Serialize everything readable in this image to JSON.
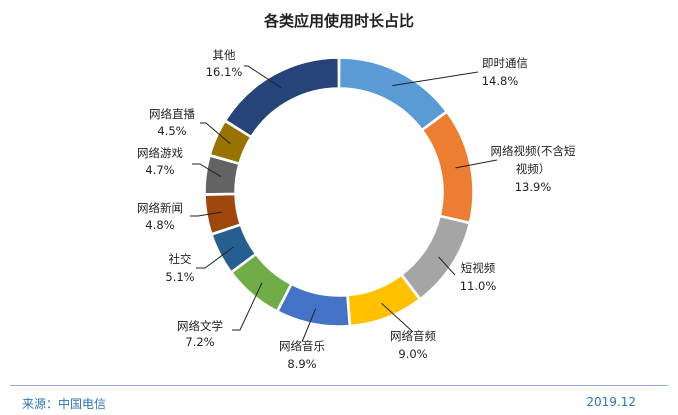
{
  "chart_data": {
    "type": "pie",
    "variant": "donut",
    "title": "各类应用使用时长占比",
    "slices": [
      {
        "label": "即时通信",
        "value": 14.8,
        "value_label": "14.8%",
        "color": "#5b9bd5"
      },
      {
        "label": "网络视频(不含短视频）",
        "value": 13.9,
        "value_label": "13.9%",
        "color": "#ed7d31"
      },
      {
        "label": "短视频",
        "value": 11.0,
        "value_label": "11.0%",
        "color": "#a5a5a5"
      },
      {
        "label": "网络音频",
        "value": 9.0,
        "value_label": "9.0%",
        "color": "#ffc000"
      },
      {
        "label": "网络音乐",
        "value": 8.9,
        "value_label": "8.9%",
        "color": "#4472c4"
      },
      {
        "label": "网络文学",
        "value": 7.2,
        "value_label": "7.2%",
        "color": "#70ad47"
      },
      {
        "label": "社交",
        "value": 5.1,
        "value_label": "5.1%",
        "color": "#255e91"
      },
      {
        "label": "网络新闻",
        "value": 4.8,
        "value_label": "4.8%",
        "color": "#9e480e"
      },
      {
        "label": "网络游戏",
        "value": 4.7,
        "value_label": "4.7%",
        "color": "#636363"
      },
      {
        "label": "网络直播",
        "value": 4.5,
        "value_label": "4.5%",
        "color": "#997300"
      },
      {
        "label": "其他",
        "value": 16.1,
        "value_label": "16.1%",
        "color": "#264478"
      }
    ],
    "start_angle_deg": 0,
    "direction": "clockwise",
    "legend": "none"
  },
  "footer": {
    "source": "来源：中国电信",
    "date": "2019.12"
  }
}
